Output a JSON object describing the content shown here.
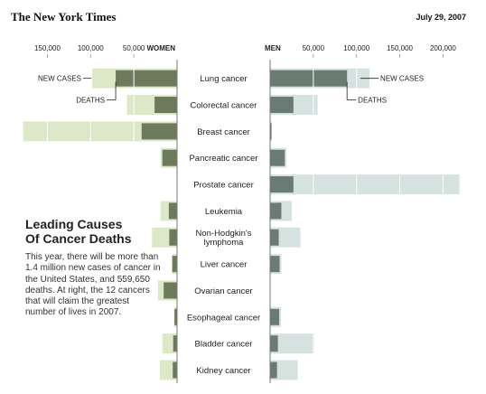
{
  "header": {
    "masthead": "The New York Times",
    "date": "July 29, 2007"
  },
  "intro": {
    "headline_line1": "Leading Causes",
    "headline_line2": "Of Cancer Deaths",
    "body": "This year, there will be more than 1.4 million new cases of cancer in the United States, and 559,650 deaths. At right, the 12 cancers that will claim the greatest number of lives in 2007."
  },
  "chart_data": {
    "type": "bar",
    "women_label": "WOMEN",
    "men_label": "MEN",
    "women_ticks": [
      "150,000",
      "100,000",
      "50,000"
    ],
    "women_tick_values": [
      150000,
      100000,
      50000
    ],
    "men_ticks": [
      "50,000",
      "100,000",
      "150,000",
      "200,000"
    ],
    "men_tick_values": [
      50000,
      100000,
      150000,
      200000
    ],
    "annotations": {
      "new_cases": "NEW CASES",
      "deaths": "DEATHS"
    },
    "colors": {
      "women_new_cases": "#dde8c8",
      "women_deaths": "#6e7a5c",
      "men_new_cases": "#d6e2e0",
      "men_deaths": "#6a7b74",
      "axis": "#777777"
    },
    "categories": [
      "Lung cancer",
      "Colorectal cancer",
      "Breast cancer",
      "Pancreatic cancer",
      "Prostate cancer",
      "Leukemia",
      "Non-Hodgkin's lymphoma",
      "Liver cancer",
      "Ovarian cancer",
      "Esophageal cancer",
      "Bladder cancer",
      "Kidney cancer"
    ],
    "women": {
      "new_cases": [
        98000,
        58000,
        178000,
        19000,
        0,
        19000,
        29000,
        6000,
        22000,
        3500,
        17000,
        20000
      ],
      "deaths": [
        71000,
        26000,
        41000,
        17000,
        0,
        9500,
        9000,
        5500,
        15500,
        3000,
        4500,
        5000
      ]
    },
    "men": {
      "new_cases": [
        115000,
        55000,
        2000,
        19000,
        219000,
        25000,
        35000,
        13000,
        0,
        12500,
        51000,
        32000
      ],
      "deaths": [
        89000,
        27000,
        500,
        17000,
        27000,
        13000,
        10000,
        11000,
        0,
        10500,
        9000,
        8000
      ]
    }
  }
}
